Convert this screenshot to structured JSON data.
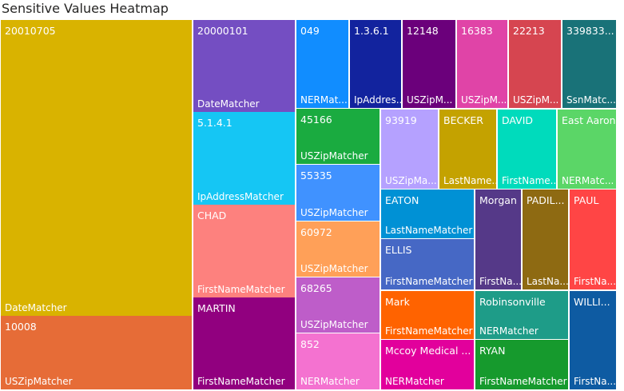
{
  "title": "Sensitive Values Heatmap",
  "chart_data": {
    "type": "treemap",
    "title": "Sensitive Values Heatmap",
    "items": [
      {
        "label": "20010705",
        "category": "DateMatcher",
        "color": "#D9B300"
      },
      {
        "label": "10008",
        "category": "USZipMatcher",
        "color": "#E66C37"
      },
      {
        "label": "20000101",
        "category": "DateMatcher",
        "color": "#744EC2"
      },
      {
        "label": "5.1.4.1",
        "category": "IpAddressMatcher",
        "color": "#15C6F4"
      },
      {
        "label": "CHAD",
        "category": "FirstNameMatcher",
        "color": "#FD817E"
      },
      {
        "label": "MARTIN",
        "category": "FirstNameMatcher",
        "color": "#91007F"
      },
      {
        "label": "049",
        "category": "NERMatcher",
        "color": "#118DFF"
      },
      {
        "label": "1.3.6.1",
        "category": "IpAddressMatcher",
        "color": "#12239E"
      },
      {
        "label": "12148",
        "category": "USZipMatcher",
        "color": "#6B007B"
      },
      {
        "label": "16383",
        "category": "USZipMatcher",
        "color": "#E044A7"
      },
      {
        "label": "22213",
        "category": "USZipMatcher",
        "color": "#D64550"
      },
      {
        "label": "339833...",
        "category": "SsnMatcher",
        "color": "#197278"
      },
      {
        "label": "45166",
        "category": "USZipMatcher",
        "color": "#1AAB40"
      },
      {
        "label": "55335",
        "category": "USZipMatcher",
        "color": "#4092FF"
      },
      {
        "label": "60972",
        "category": "USZipMatcher",
        "color": "#FFA058"
      },
      {
        "label": "68265",
        "category": "USZipMatcher",
        "color": "#BE5DC9"
      },
      {
        "label": "852",
        "category": "NERMatcher",
        "color": "#F472D0"
      },
      {
        "label": "93919",
        "category": "USZipMatcher",
        "color": "#B5A1FF"
      },
      {
        "label": "BECKER",
        "category": "LastNameMatcher",
        "color": "#C4A200"
      },
      {
        "label": "DAVID",
        "category": "FirstNameMatcher",
        "color": "#00DBBC"
      },
      {
        "label": "East Aaron",
        "category": "NERMatcher",
        "color": "#5BD667"
      },
      {
        "label": "EATON",
        "category": "LastNameMatcher",
        "color": "#0091D5"
      },
      {
        "label": "ELLIS",
        "category": "FirstNameMatcher",
        "color": "#4668C5"
      },
      {
        "label": "Mark",
        "category": "FirstNameMatcher",
        "color": "#FF6300"
      },
      {
        "label": "Mccoy Medical ...",
        "category": "NERMatcher",
        "color": "#E2009C"
      },
      {
        "label": "Morgan",
        "category": "FirstNameMatcher",
        "color": "#553988"
      },
      {
        "label": "PADIL...",
        "category": "LastNameMatcher",
        "color": "#8E6A12"
      },
      {
        "label": "PAUL",
        "category": "FirstNameMatcher",
        "color": "#FF4545"
      },
      {
        "label": "Robinsonville",
        "category": "NERMatcher",
        "color": "#1E9C88"
      },
      {
        "label": "RYAN",
        "category": "FirstNameMatcher",
        "color": "#169A2D"
      },
      {
        "label": "WILLI...",
        "category": "FirstNameMatcher",
        "color": "#0E5BA2"
      }
    ],
    "tile_text": [
      {
        "value": "20010705",
        "category": "DateMatcher"
      },
      {
        "value": "10008",
        "category": "USZipMatcher"
      },
      {
        "value": "20000101",
        "category": "DateMatcher"
      },
      {
        "value": "5.1.4.1",
        "category": "IpAddressMatcher"
      },
      {
        "value": "CHAD",
        "category": "FirstNameMatcher"
      },
      {
        "value": "MARTIN",
        "category": "FirstNameMatcher"
      },
      {
        "value": "049",
        "category": "NERMat..."
      },
      {
        "value": "1.3.6.1",
        "category": "IpAddres..."
      },
      {
        "value": "12148",
        "category": "USZipM..."
      },
      {
        "value": "16383",
        "category": "USZipM..."
      },
      {
        "value": "22213",
        "category": "USZipM..."
      },
      {
        "value": "339833...",
        "category": "SsnMatc..."
      },
      {
        "value": "45166",
        "category": "USZipMatcher"
      },
      {
        "value": "55335",
        "category": "USZipMatcher"
      },
      {
        "value": "60972",
        "category": "USZipMatcher"
      },
      {
        "value": "68265",
        "category": "USZipMatcher"
      },
      {
        "value": "852",
        "category": "NERMatcher"
      },
      {
        "value": "93919",
        "category": "USZipMa..."
      },
      {
        "value": "BECKER",
        "category": "LastName..."
      },
      {
        "value": "DAVID",
        "category": "FirstName..."
      },
      {
        "value": "East Aaron",
        "category": "NERMatc..."
      },
      {
        "value": "EATON",
        "category": "LastNameMatcher"
      },
      {
        "value": "ELLIS",
        "category": "FirstNameMatcher"
      },
      {
        "value": "Mark",
        "category": "FirstNameMatcher"
      },
      {
        "value": "Mccoy Medical ...",
        "category": "NERMatcher"
      },
      {
        "value": "Morgan",
        "category": "FirstNa..."
      },
      {
        "value": "PADIL...",
        "category": "LastNa..."
      },
      {
        "value": "PAUL",
        "category": "FirstNa..."
      },
      {
        "value": "Robinsonville",
        "category": "NERMatcher"
      },
      {
        "value": "RYAN",
        "category": "FirstNameMatcher"
      },
      {
        "value": "WILLI...",
        "category": "FirstNa..."
      }
    ]
  }
}
